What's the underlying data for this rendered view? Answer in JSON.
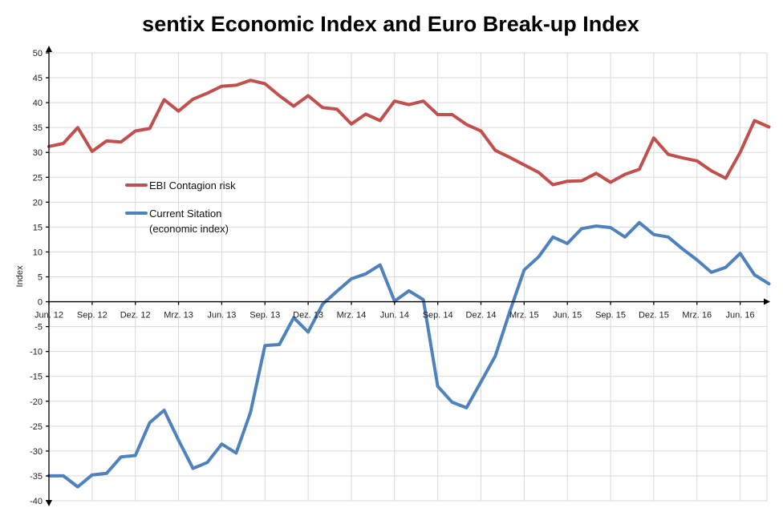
{
  "chart_data": {
    "type": "line",
    "title": "sentix Economic Index and Euro Break-up Index",
    "ylabel": "Index",
    "xlabel": "",
    "ylim": [
      -40,
      50
    ],
    "yticks": [
      50,
      45,
      40,
      35,
      30,
      25,
      20,
      15,
      10,
      5,
      0,
      -5,
      -10,
      -15,
      -20,
      -25,
      -30,
      -35,
      -40
    ],
    "x_tick_labels": [
      "Jun. 12",
      "Sep. 12",
      "Dez. 12",
      "Mrz. 13",
      "Jun. 13",
      "Sep. 13",
      "Dez. 13",
      "Mrz. 14",
      "Jun. 14",
      "Sep. 14",
      "Dez. 14",
      "Mrz. 15",
      "Jun. 15",
      "Sep. 15",
      "Dez. 15",
      "Mrz. 16",
      "Jun. 16"
    ],
    "x": [
      "2012-06",
      "2012-07",
      "2012-08",
      "2012-09",
      "2012-10",
      "2012-11",
      "2012-12",
      "2013-01",
      "2013-02",
      "2013-03",
      "2013-04",
      "2013-05",
      "2013-06",
      "2013-07",
      "2013-08",
      "2013-09",
      "2013-10",
      "2013-11",
      "2013-12",
      "2014-01",
      "2014-02",
      "2014-03",
      "2014-04",
      "2014-05",
      "2014-06",
      "2014-07",
      "2014-08",
      "2014-09",
      "2014-10",
      "2014-11",
      "2014-12",
      "2015-01",
      "2015-02",
      "2015-03",
      "2015-04",
      "2015-05",
      "2015-06",
      "2015-07",
      "2015-08",
      "2015-09",
      "2015-10",
      "2015-11",
      "2015-12",
      "2016-01",
      "2016-02",
      "2016-03",
      "2016-04",
      "2016-05",
      "2016-06",
      "2016-07",
      "2016-08"
    ],
    "grid": true,
    "legend_position": "left-middle",
    "series": [
      {
        "name": "EBI Contagion risk",
        "color": "#c0504d",
        "values": [
          31.2,
          31.8,
          35.0,
          30.2,
          32.3,
          32.1,
          34.3,
          34.8,
          40.6,
          38.3,
          40.7,
          41.9,
          43.3,
          43.5,
          44.5,
          43.8,
          41.4,
          39.3,
          41.4,
          39.0,
          38.7,
          35.7,
          37.7,
          36.4,
          40.3,
          39.6,
          40.3,
          37.6,
          37.6,
          35.6,
          34.3,
          30.4,
          29.0,
          27.5,
          26.0,
          23.5,
          24.2,
          24.3,
          25.8,
          24.0,
          25.6,
          26.6,
          32.9,
          29.6,
          28.9,
          28.3,
          26.3,
          24.8,
          30.0,
          36.4,
          35.1
        ]
      },
      {
        "name": "Current Sitation (economic index)",
        "legend_lines": [
          "Current Sitation",
          "(economic index)"
        ],
        "color": "#4f81bd",
        "values": [
          -35.0,
          -35.0,
          -37.2,
          -34.8,
          -34.5,
          -31.2,
          -30.9,
          -24.3,
          -21.8,
          -27.8,
          -33.5,
          -32.3,
          -28.6,
          -30.4,
          -22.2,
          -8.8,
          -8.6,
          -3.2,
          -6.1,
          -0.5,
          2.1,
          4.6,
          5.6,
          7.4,
          0.1,
          2.2,
          0.4,
          -17.0,
          -20.2,
          -21.3,
          -16.1,
          -10.9,
          -2.0,
          6.4,
          9.0,
          13.0,
          11.7,
          14.7,
          15.2,
          14.9,
          13.0,
          15.9,
          13.5,
          13.0,
          10.6,
          8.4,
          5.9,
          6.9,
          9.7,
          5.4,
          3.6
        ]
      }
    ]
  }
}
